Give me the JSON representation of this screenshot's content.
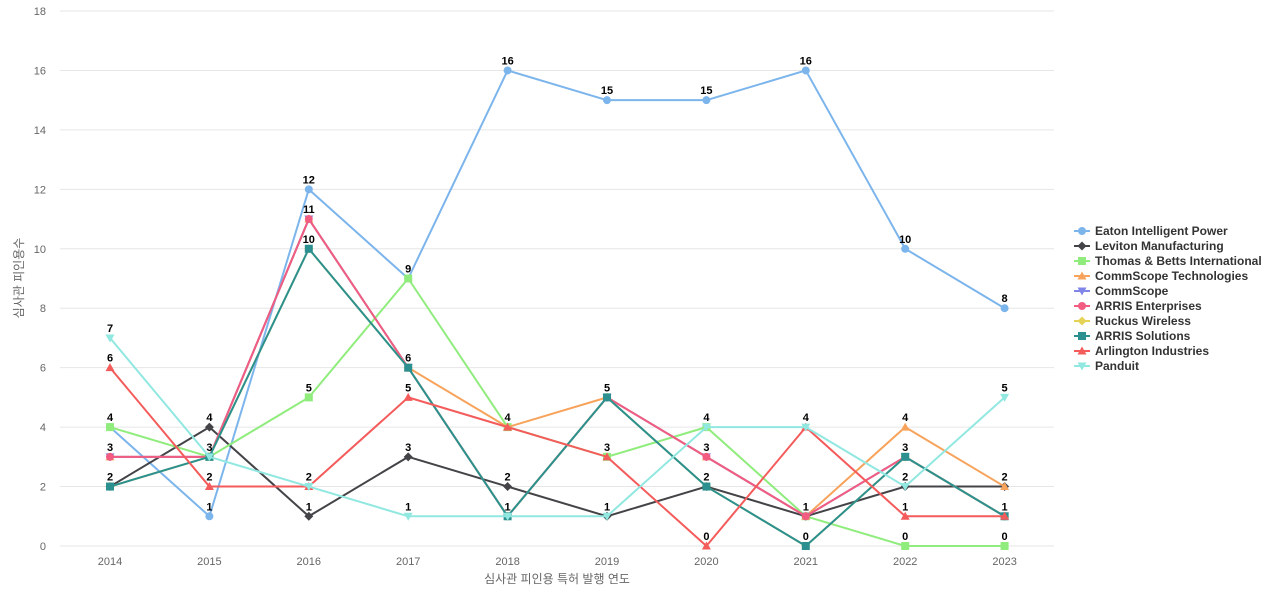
{
  "chart_data": {
    "type": "line",
    "title": "",
    "xlabel": "심사관 피인용 특허 발행 연도",
    "ylabel": "심사관 피인용수",
    "ylim": [
      0,
      18
    ],
    "yticks": [
      0,
      2,
      4,
      6,
      8,
      10,
      12,
      14,
      16,
      18
    ],
    "grid": true,
    "legend_position": "right",
    "categories": [
      "2014",
      "2015",
      "2016",
      "2017",
      "2018",
      "2019",
      "2020",
      "2021",
      "2022",
      "2023"
    ],
    "series": [
      {
        "name": "Eaton Intelligent Power",
        "color": "#7cb5ec",
        "marker": "circle",
        "values": [
          4,
          1,
          12,
          9,
          16,
          15,
          15,
          16,
          10,
          8
        ]
      },
      {
        "name": "Leviton Manufacturing",
        "color": "#434348",
        "marker": "diamond",
        "values": [
          2,
          4,
          1,
          3,
          2,
          1,
          2,
          1,
          2,
          2
        ]
      },
      {
        "name": "Thomas & Betts International",
        "color": "#90ed7d",
        "marker": "square",
        "values": [
          4,
          3,
          5,
          9,
          4,
          3,
          4,
          1,
          0,
          0
        ]
      },
      {
        "name": "CommScope Technologies",
        "color": "#f7a35c",
        "marker": "triangle",
        "values": [
          3,
          3,
          11,
          6,
          4,
          5,
          3,
          1,
          4,
          2
        ]
      },
      {
        "name": "CommScope",
        "color": "#8085e9",
        "marker": "triangle-down",
        "values": [
          3,
          3,
          11,
          6,
          1,
          5,
          3,
          1,
          3,
          1
        ]
      },
      {
        "name": "ARRIS Enterprises",
        "color": "#f15c80",
        "marker": "circle",
        "values": [
          3,
          3,
          11,
          6,
          1,
          5,
          3,
          1,
          3,
          1
        ]
      },
      {
        "name": "Ruckus Wireless",
        "color": "#e4d354",
        "marker": "diamond",
        "values": [
          2,
          3,
          10,
          6,
          1,
          5,
          2,
          0,
          3,
          1
        ]
      },
      {
        "name": "ARRIS Solutions",
        "color": "#2b908f",
        "marker": "square",
        "values": [
          2,
          3,
          10,
          6,
          1,
          5,
          2,
          0,
          3,
          1
        ]
      },
      {
        "name": "Arlington Industries",
        "color": "#f45b5b",
        "marker": "triangle",
        "values": [
          6,
          2,
          2,
          5,
          4,
          3,
          0,
          4,
          1,
          1
        ]
      },
      {
        "name": "Panduit",
        "color": "#91e8e1",
        "marker": "triangle-down",
        "values": [
          7,
          3,
          2,
          1,
          1,
          1,
          4,
          4,
          2,
          5
        ]
      }
    ],
    "data_labels": [
      {
        "x": "2014",
        "values": [
          7,
          6,
          4,
          3,
          2
        ]
      },
      {
        "x": "2015",
        "values": [
          4,
          3,
          2,
          1
        ]
      },
      {
        "x": "2016",
        "values": [
          12,
          11,
          10,
          5,
          2,
          1
        ]
      },
      {
        "x": "2017",
        "values": [
          9,
          6,
          5,
          3,
          1
        ]
      },
      {
        "x": "2018",
        "values": [
          16,
          4,
          2,
          1
        ]
      },
      {
        "x": "2019",
        "values": [
          15,
          5,
          3,
          1
        ]
      },
      {
        "x": "2020",
        "values": [
          15,
          4,
          3,
          2,
          0
        ]
      },
      {
        "x": "2021",
        "values": [
          16,
          4,
          1,
          0
        ]
      },
      {
        "x": "2022",
        "values": [
          10,
          4,
          3,
          2,
          1,
          0
        ]
      },
      {
        "x": "2023",
        "values": [
          8,
          5,
          2,
          1,
          0
        ]
      }
    ]
  }
}
